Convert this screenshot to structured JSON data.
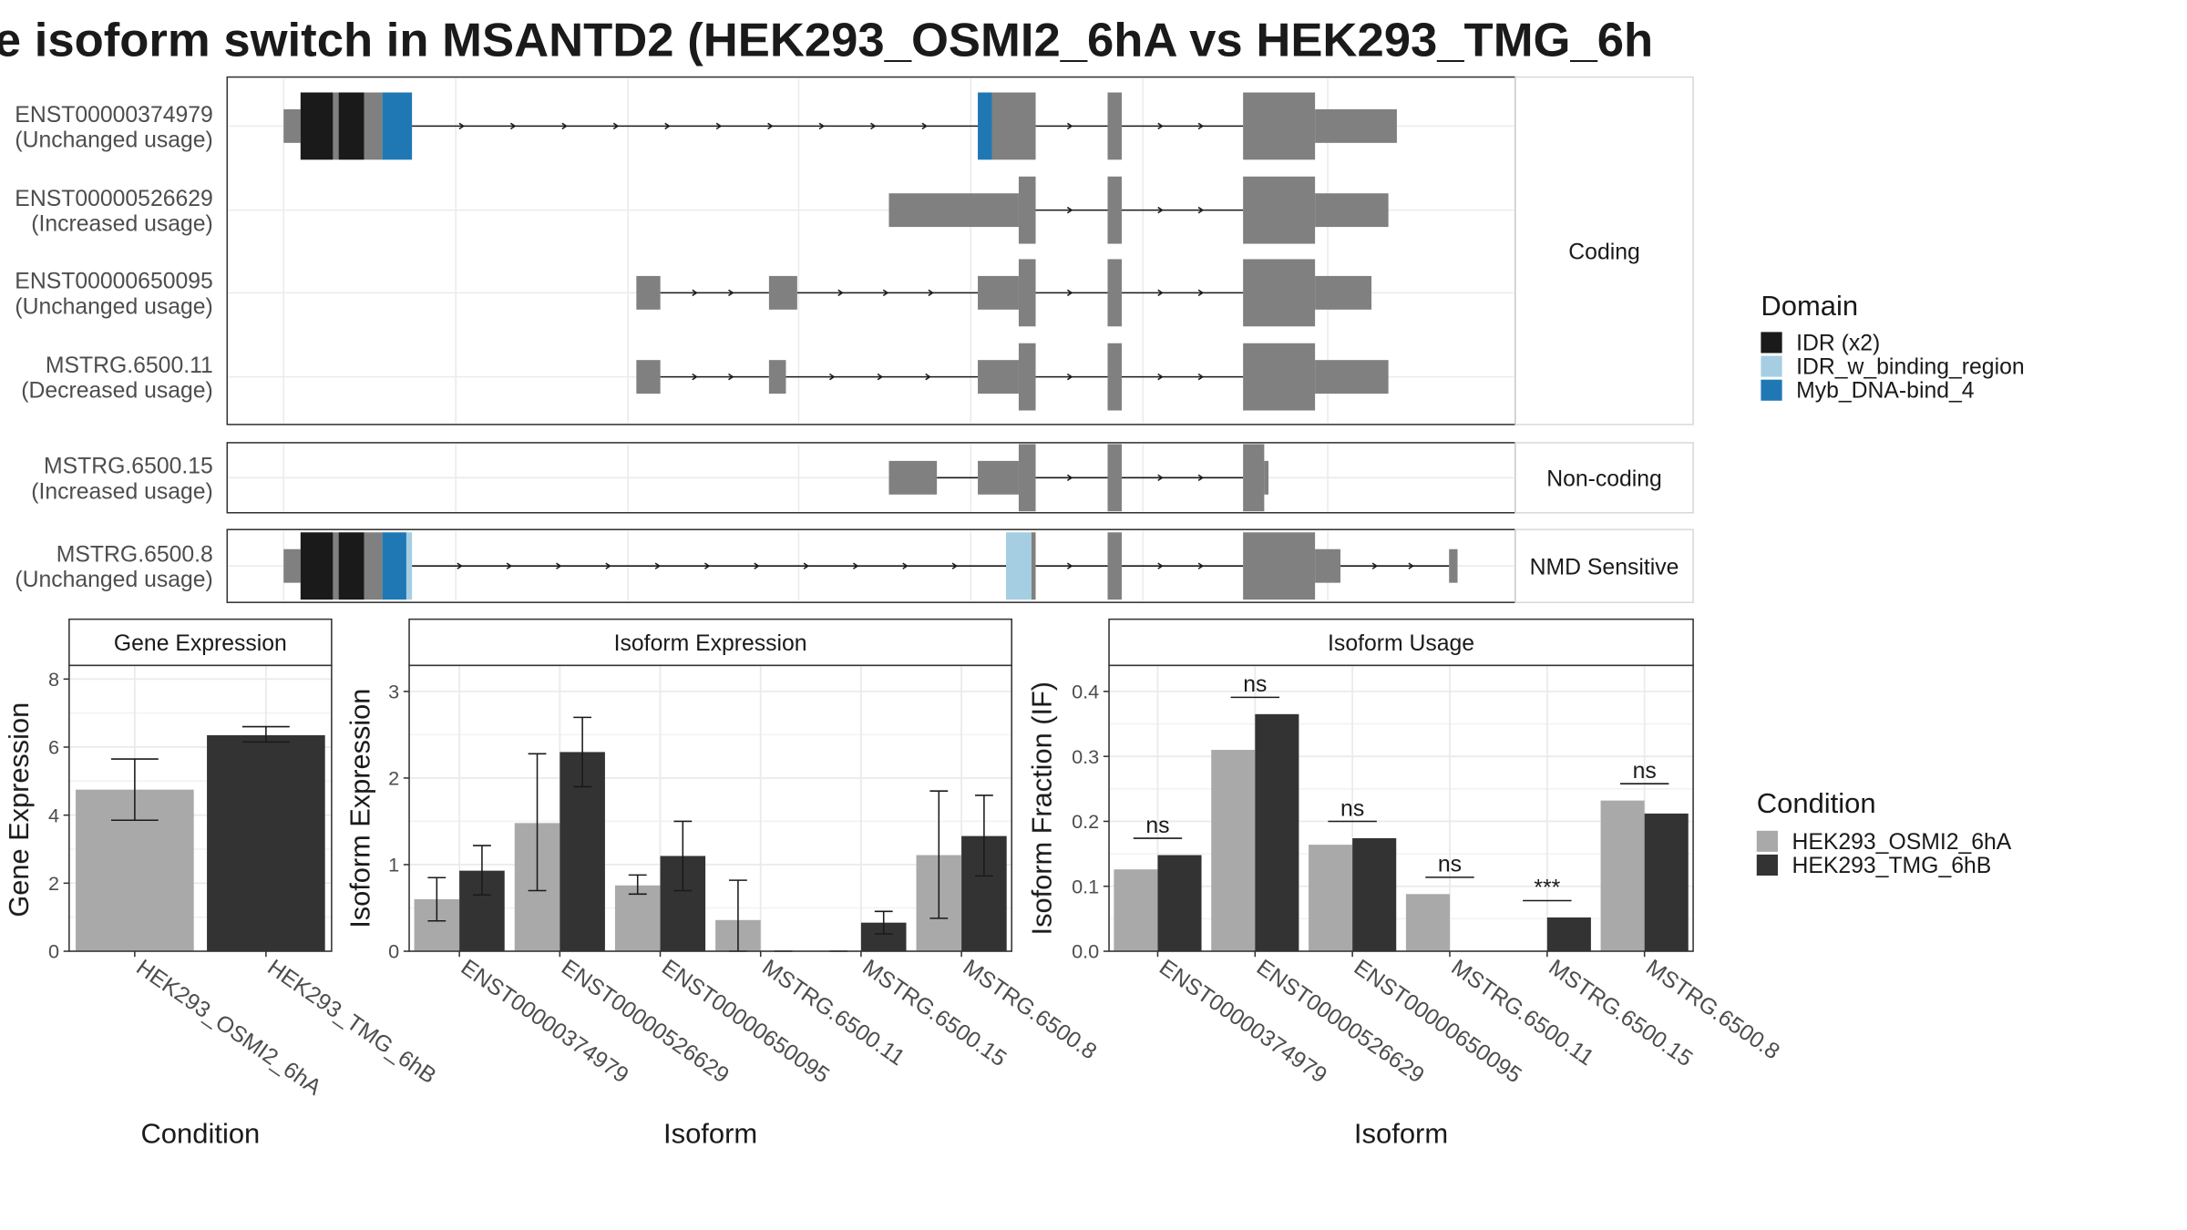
{
  "title": "e isoform switch in MSANTD2 (HEK293_OSMI2_6hA vs HEK293_TMG_6h",
  "colors": {
    "exon": "#808080",
    "cond_a": "#a9a9a9",
    "cond_b": "#333333",
    "domain_idr": "#1a1a1a",
    "domain_idr_binding": "#a6cee3",
    "domain_myb": "#1f78b4"
  },
  "structure": {
    "groups": [
      "Coding",
      "Non-coding",
      "NMD Sensitive"
    ],
    "isoforms": [
      {
        "id": "ENST00000374979",
        "usage": "(Unchanged usage)",
        "group": "Coding"
      },
      {
        "id": "ENST00000526629",
        "usage": "(Increased usage)",
        "group": "Coding"
      },
      {
        "id": "ENST00000650095",
        "usage": "(Unchanged usage)",
        "group": "Coding"
      },
      {
        "id": "MSTRG.6500.11",
        "usage": "(Decreased usage)",
        "group": "Coding"
      },
      {
        "id": "MSTRG.6500.15",
        "usage": "(Increased usage)",
        "group": "Non-coding"
      },
      {
        "id": "MSTRG.6500.8",
        "usage": "(Unchanged usage)",
        "group": "NMD Sensitive"
      }
    ]
  },
  "legends": {
    "domain_title": "Domain",
    "domains": [
      "IDR (x2)",
      "IDR_w_binding_region",
      "Myb_DNA-bind_4"
    ],
    "condition_title": "Condition",
    "conditions": [
      "HEK293_OSMI2_6hA",
      "HEK293_TMG_6hB"
    ]
  },
  "chart_data": [
    {
      "type": "bar",
      "title": "Gene Expression",
      "xlabel": "Condition",
      "ylabel": "Gene Expression",
      "categories": [
        "HEK293_OSMI2_6hA",
        "HEK293_TMG_6hB"
      ],
      "values": [
        4.75,
        6.35
      ],
      "error_low": [
        3.85,
        6.15
      ],
      "error_high": [
        5.65,
        6.6
      ],
      "ylim": [
        0,
        8.4
      ],
      "yticks": [
        0,
        2,
        4,
        6,
        8
      ],
      "grid": true
    },
    {
      "type": "bar",
      "title": "Isoform Expression",
      "xlabel": "Isoform",
      "ylabel": "Isoform Expression",
      "categories": [
        "ENST00000374979",
        "ENST00000526629",
        "ENST00000650095",
        "MSTRG.6500.11",
        "MSTRG.6500.15",
        "MSTRG.6500.8"
      ],
      "series": [
        {
          "name": "HEK293_OSMI2_6hA",
          "values": [
            0.6,
            1.48,
            0.76,
            0.36,
            0.0,
            1.11
          ],
          "error_low": [
            0.35,
            0.7,
            0.66,
            0.0,
            0.0,
            0.38
          ],
          "error_high": [
            0.85,
            2.28,
            0.88,
            0.82,
            0.0,
            1.85
          ]
        },
        {
          "name": "HEK293_TMG_6hB",
          "values": [
            0.93,
            2.3,
            1.1,
            0.0,
            0.33,
            1.33
          ],
          "error_low": [
            0.65,
            1.9,
            0.7,
            0.0,
            0.2,
            0.87
          ],
          "error_high": [
            1.22,
            2.7,
            1.5,
            0.0,
            0.46,
            1.8
          ]
        }
      ],
      "ylim": [
        0,
        3.3
      ],
      "yticks": [
        0,
        1,
        2,
        3
      ],
      "grid": true
    },
    {
      "type": "bar",
      "title": "Isoform Usage",
      "xlabel": "Isoform",
      "ylabel": "Isoform Fraction (IF)",
      "categories": [
        "ENST00000374979",
        "ENST00000526629",
        "ENST00000650095",
        "MSTRG.6500.11",
        "MSTRG.6500.15",
        "MSTRG.6500.8"
      ],
      "series": [
        {
          "name": "HEK293_OSMI2_6hA",
          "values": [
            0.126,
            0.31,
            0.164,
            0.088,
            0.0,
            0.232
          ]
        },
        {
          "name": "HEK293_TMG_6hB",
          "values": [
            0.148,
            0.365,
            0.174,
            0.0,
            0.052,
            0.212
          ]
        }
      ],
      "significance": [
        "ns",
        "ns",
        "ns",
        "ns",
        "***",
        "ns"
      ],
      "ylim": [
        0,
        0.44
      ],
      "yticks": [
        0.0,
        0.1,
        0.2,
        0.3,
        0.4
      ],
      "grid": true
    }
  ]
}
